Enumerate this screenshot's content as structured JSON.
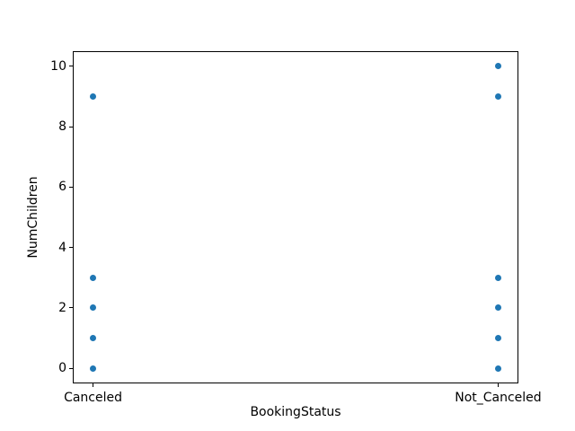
{
  "chart_data": {
    "type": "scatter",
    "title": "",
    "xlabel": "BookingStatus",
    "ylabel": "NumChildren",
    "categories": [
      "Canceled",
      "Not_Canceled"
    ],
    "series": [
      {
        "name": "NumChildren",
        "marker_color": "#1f77b4",
        "marker_shape": "circle",
        "marker_diameter_px": 7,
        "points": [
          {
            "category": "Canceled",
            "x": 0,
            "y": 0
          },
          {
            "category": "Canceled",
            "x": 0,
            "y": 1
          },
          {
            "category": "Canceled",
            "x": 0,
            "y": 2
          },
          {
            "category": "Canceled",
            "x": 0,
            "y": 3
          },
          {
            "category": "Canceled",
            "x": 0,
            "y": 9
          },
          {
            "category": "Not_Canceled",
            "x": 1,
            "y": 0
          },
          {
            "category": "Not_Canceled",
            "x": 1,
            "y": 1
          },
          {
            "category": "Not_Canceled",
            "x": 1,
            "y": 2
          },
          {
            "category": "Not_Canceled",
            "x": 1,
            "y": 3
          },
          {
            "category": "Not_Canceled",
            "x": 1,
            "y": 9
          },
          {
            "category": "Not_Canceled",
            "x": 1,
            "y": 10
          }
        ]
      }
    ],
    "xticks": [
      {
        "position": 0,
        "label": "Canceled"
      },
      {
        "position": 1,
        "label": "Not_Canceled"
      }
    ],
    "yticks": [
      0,
      2,
      4,
      6,
      8,
      10
    ],
    "xlim": [
      -0.05,
      1.05
    ],
    "ylim": [
      -0.5,
      10.5
    ],
    "grid": false,
    "legend_position": null,
    "colors": {
      "background": "#ffffff",
      "spine": "#000000",
      "text": "#000000",
      "marker": "#1f77b4"
    }
  }
}
